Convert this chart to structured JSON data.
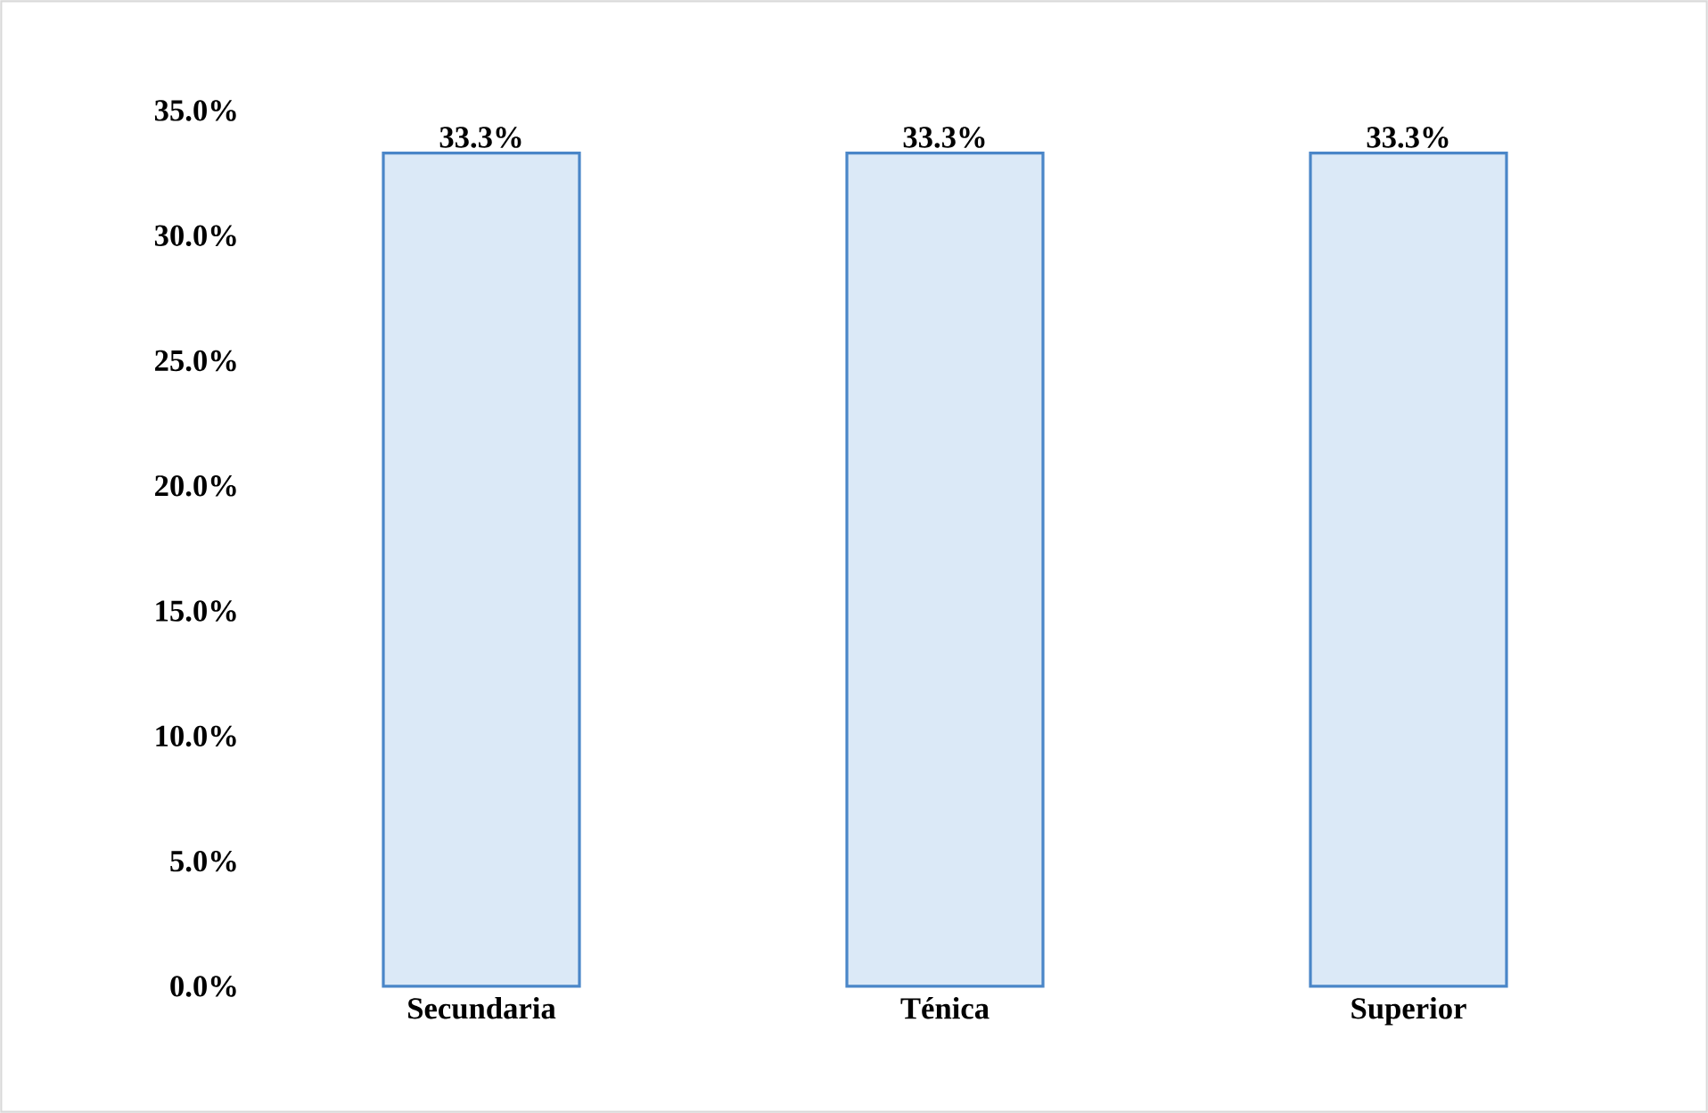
{
  "chart_data": {
    "type": "bar",
    "categories": [
      "Secundaria",
      "Ténica",
      "Superior"
    ],
    "values": [
      33.3,
      33.3,
      33.3
    ],
    "color": "#dbe9f7",
    "value_labels": [
      "33.3%",
      "33.3%",
      "33.3%"
    ],
    "ylim": [
      0,
      35
    ],
    "yticks": [
      {
        "value": 0,
        "label": "0.0%"
      },
      {
        "value": 5,
        "label": "5.0%"
      },
      {
        "value": 10,
        "label": "10.0%"
      },
      {
        "value": 15,
        "label": "15.0%"
      },
      {
        "value": 20,
        "label": "20.0%"
      },
      {
        "value": 25,
        "label": "25.0%"
      },
      {
        "value": 30,
        "label": "30.0%"
      },
      {
        "value": 35,
        "label": "35.0%"
      }
    ],
    "grid": false
  }
}
